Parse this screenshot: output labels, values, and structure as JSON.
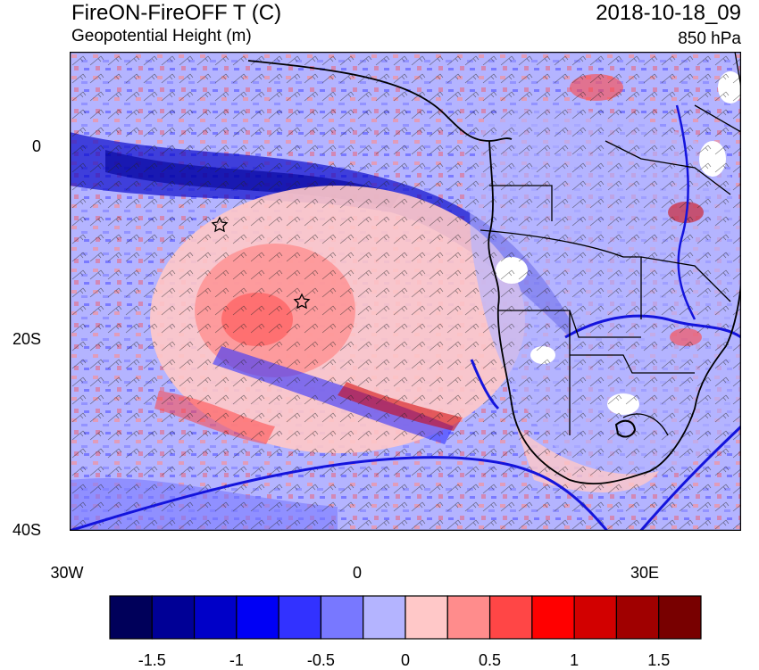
{
  "header": {
    "title": "FireON-FireOFF T (C)",
    "subtitle": "Geopotential Height (m)",
    "datetime": "2018-10-18_09",
    "level": "850 hPa"
  },
  "axes": {
    "lat_labels": [
      "0",
      "20S",
      "40S"
    ],
    "lon_labels": [
      "30W",
      "0",
      "30E"
    ]
  },
  "colorbar": {
    "labels": [
      "-1.5",
      "-1",
      "-0.5",
      "0",
      "0.5",
      "1",
      "1.5"
    ],
    "colors": [
      "#00005a",
      "#000096",
      "#0000c8",
      "#0000f5",
      "#3232ff",
      "#7878ff",
      "#b4b4ff",
      "#ffc8c8",
      "#ff8c8c",
      "#ff4646",
      "#ff0000",
      "#d20000",
      "#a00000",
      "#780000"
    ]
  }
}
